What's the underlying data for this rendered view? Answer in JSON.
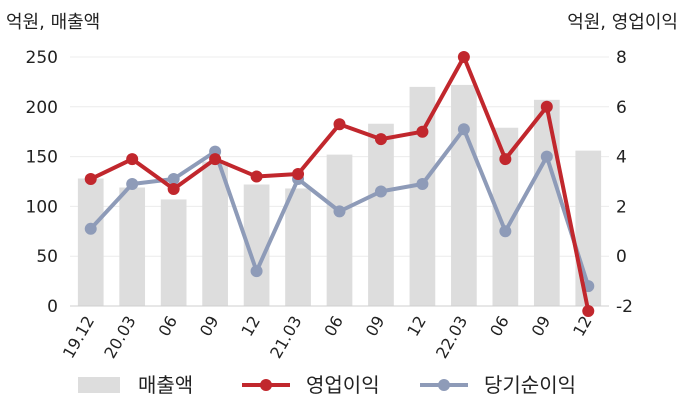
{
  "chart_data": {
    "type": "bar+line",
    "left_axis_label": "억원, 매출액",
    "right_axis_label": "억원, 영업이익",
    "categories": [
      "19.12",
      "20.03",
      "06",
      "09",
      "12",
      "21.03",
      "06",
      "09",
      "12",
      "22.03",
      "06",
      "09",
      "12"
    ],
    "left_axis": {
      "ylim": [
        0,
        250
      ],
      "ticks": [
        "0",
        "50",
        "100",
        "150",
        "200",
        "250"
      ]
    },
    "right_axis": {
      "ylim": [
        -2,
        8
      ],
      "ticks": [
        "-2",
        "0",
        "2",
        "4",
        "6",
        "8"
      ]
    },
    "series": [
      {
        "name": "매출액",
        "kind": "bar",
        "axis": "left",
        "color": "#dddddd",
        "values": [
          128,
          119,
          107,
          145,
          122,
          118,
          152,
          183,
          220,
          222,
          179,
          207,
          156
        ]
      },
      {
        "name": "영업이익",
        "kind": "line",
        "axis": "right",
        "color": "#c1272d",
        "values": [
          3.1,
          3.9,
          2.7,
          3.9,
          3.2,
          3.3,
          5.3,
          4.7,
          5.0,
          8.0,
          3.9,
          6.0,
          -2.2
        ]
      },
      {
        "name": "당기순이익",
        "kind": "line",
        "axis": "right",
        "color": "#8e9bb8",
        "values": [
          1.1,
          2.9,
          3.1,
          4.2,
          -0.6,
          3.1,
          1.8,
          2.6,
          2.9,
          5.1,
          1.0,
          4.0,
          -1.2
        ]
      }
    ],
    "grid": true,
    "legend_position": "bottom"
  }
}
